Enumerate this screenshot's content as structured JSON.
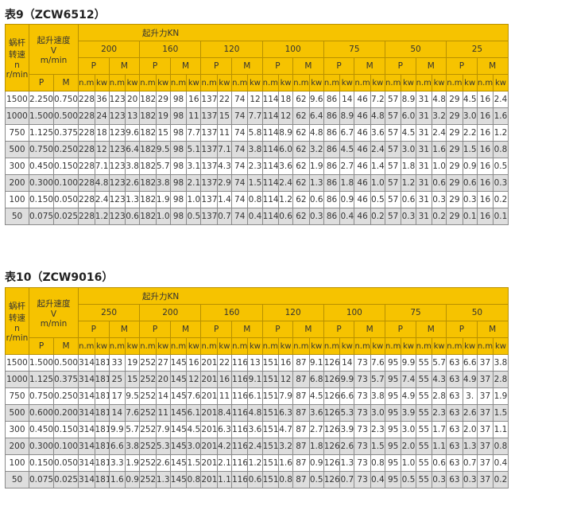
{
  "colors": {
    "header": "#f6c300",
    "row_alt": "#dedede"
  },
  "header_labels": {
    "worm_speed": [
      "蜗杆",
      "转速",
      "n",
      "r/min"
    ],
    "lift_speed": [
      "起升速度",
      "V",
      "m/min"
    ],
    "lift_force": "起升力KN",
    "p": "P",
    "m": "M",
    "nm": "n.m",
    "kw": "kw"
  },
  "tables": [
    {
      "title": "表9（ZCW6512）",
      "loads": [
        "200",
        "160",
        "120",
        "100",
        "75",
        "50",
        "25"
      ],
      "rows": [
        [
          "1500",
          "2.250",
          "0.750",
          "228",
          "36",
          "123",
          "20",
          "182",
          "29",
          "98",
          "16",
          "137",
          "22",
          "74",
          "12",
          "114",
          "18",
          "62",
          "9.6",
          "86",
          "14",
          "46",
          "7.2",
          "57",
          "8.9",
          "31",
          "4.8",
          "29",
          "4.5",
          "16",
          "2.4"
        ],
        [
          "1000",
          "1.500",
          "0.500",
          "228",
          "24",
          "123",
          "13",
          "182",
          "19",
          "98",
          "11",
          "137",
          "15",
          "74",
          "7.7",
          "114",
          "12",
          "62",
          "6.4",
          "86",
          "8.9",
          "46",
          "4.8",
          "57",
          "6.0",
          "31",
          "3.2",
          "29",
          "3.0",
          "16",
          "1.6"
        ],
        [
          "750",
          "1.125",
          "0.375",
          "228",
          "18",
          "123",
          "9.6",
          "182",
          "15",
          "98",
          "7.7",
          "137",
          "11",
          "74",
          "5.8",
          "114",
          "8.9",
          "62",
          "4.8",
          "86",
          "6.7",
          "46",
          "3.6",
          "57",
          "4.5",
          "31",
          "2.4",
          "29",
          "2.2",
          "16",
          "1.2"
        ],
        [
          "500",
          "0.750",
          "0.250",
          "228",
          "12",
          "123",
          "6.4",
          "182",
          "9.5",
          "98",
          "5.1",
          "137",
          "7.1",
          "74",
          "3.8",
          "114",
          "6.0",
          "62",
          "3.2",
          "86",
          "4.5",
          "46",
          "2.4",
          "57",
          "3.0",
          "31",
          "1.6",
          "29",
          "1.5",
          "16",
          "0.8"
        ],
        [
          "300",
          "0.450",
          "0.150",
          "228",
          "7.1",
          "123",
          "3.8",
          "182",
          "5.7",
          "98",
          "3.1",
          "137",
          "4.3",
          "74",
          "2.3",
          "114",
          "3.6",
          "62",
          "1.9",
          "86",
          "2.7",
          "46",
          "1.4",
          "57",
          "1.8",
          "31",
          "1.0",
          "29",
          "0.9",
          "16",
          "0.5"
        ],
        [
          "200",
          "0.300",
          "0.100",
          "228",
          "4.8",
          "123",
          "2.6",
          "182",
          "3.8",
          "98",
          "2.1",
          "137",
          "2.9",
          "74",
          "1.5",
          "114",
          "2.4",
          "62",
          "1.3",
          "86",
          "1.8",
          "46",
          "1.0",
          "57",
          "1.2",
          "31",
          "0.6",
          "29",
          "0.6",
          "16",
          "0.3"
        ],
        [
          "100",
          "0.150",
          "0.050",
          "228",
          "2.4",
          "123",
          "1.3",
          "182",
          "1.9",
          "98",
          "1.0",
          "137",
          "1.4",
          "74",
          "0.8",
          "114",
          "1.2",
          "62",
          "0.6",
          "86",
          "0.9",
          "46",
          "0.5",
          "57",
          "0.6",
          "31",
          "0.3",
          "29",
          "0.3",
          "16",
          "0.2"
        ],
        [
          "50",
          "0.075",
          "0.025",
          "228",
          "1.2",
          "123",
          "0.6",
          "182",
          "1.0",
          "98",
          "0.5",
          "137",
          "0.7",
          "74",
          "0.4",
          "114",
          "0.6",
          "62",
          "0.3",
          "86",
          "0.4",
          "46",
          "0.2",
          "57",
          "0.3",
          "31",
          "0.2",
          "29",
          "0.1",
          "16",
          "0.1"
        ]
      ]
    },
    {
      "title": "表10（ZCW9016）",
      "loads": [
        "250",
        "200",
        "160",
        "120",
        "100",
        "75",
        "50"
      ],
      "rows": [
        [
          "1500",
          "1.500",
          "0.500",
          "314",
          "181",
          "33",
          "19",
          "252",
          "27",
          "145",
          "16",
          "201",
          "22",
          "116",
          "13",
          "151",
          "16",
          "87",
          "9.1",
          "126",
          "14",
          "73",
          "7.6",
          "95",
          "9.9",
          "55",
          "5.7",
          "63",
          "6.6",
          "37",
          "3.8"
        ],
        [
          "1000",
          "1.125",
          "0.375",
          "314",
          "181",
          "25",
          "15",
          "252",
          "20",
          "145",
          "12",
          "201",
          "16",
          "116",
          "9.1",
          "151",
          "12",
          "87",
          "6.8",
          "126",
          "9.9",
          "73",
          "5.7",
          "95",
          "7.4",
          "55",
          "4.3",
          "63",
          "4.9",
          "37",
          "2.8"
        ],
        [
          "750",
          "0.750",
          "0.250",
          "314",
          "181",
          "17",
          "9.5",
          "252",
          "14",
          "145",
          "7.6",
          "201",
          "11",
          "116",
          "6.1",
          "151",
          "7.9",
          "87",
          "4.5",
          "126",
          "6.6",
          "73",
          "3.8",
          "95",
          "4.9",
          "55",
          "2.8",
          "63",
          "3.",
          "37",
          "1.9"
        ],
        [
          "500",
          "0.600",
          "0.200",
          "314",
          "181",
          "14",
          "7.6",
          "252",
          "11",
          "145",
          "6.1",
          "201",
          "8.4",
          "116",
          "4.8",
          "151",
          "6.3",
          "87",
          "3.6",
          "126",
          "5.3",
          "73",
          "3.0",
          "95",
          "3.9",
          "55",
          "2.3",
          "63",
          "2.6",
          "37",
          "1.5"
        ],
        [
          "300",
          "0.450",
          "0.150",
          "314",
          "181",
          "9.9",
          "5.7",
          "252",
          "7.9",
          "145",
          "4.5",
          "201",
          "6.3",
          "116",
          "3.6",
          "151",
          "4.7",
          "87",
          "2.7",
          "126",
          "3.9",
          "73",
          "2.3",
          "95",
          "3.0",
          "55",
          "1.7",
          "63",
          "2.0",
          "37",
          "1.1"
        ],
        [
          "200",
          "0.300",
          "0.100",
          "314",
          "181",
          "6.6",
          "3.8",
          "252",
          "5.3",
          "145",
          "3.0",
          "201",
          "4.2",
          "116",
          "2.4",
          "151",
          "3.2",
          "87",
          "1.8",
          "126",
          "2.6",
          "73",
          "1.5",
          "95",
          "2.0",
          "55",
          "1.1",
          "63",
          "1.3",
          "37",
          "0.8"
        ],
        [
          "100",
          "0.150",
          "0.050",
          "314",
          "181",
          "3.3",
          "1.9",
          "252",
          "2.6",
          "145",
          "1.5",
          "201",
          "2.1",
          "116",
          "1.2",
          "151",
          "1.6",
          "87",
          "0.9",
          "126",
          "1.3",
          "73",
          "0.8",
          "95",
          "1.0",
          "55",
          "0.6",
          "63",
          "0.7",
          "37",
          "0.4"
        ],
        [
          "50",
          "0.075",
          "0.025",
          "314",
          "181",
          "1.6",
          "0.9",
          "252",
          "1.3",
          "145",
          "0.8",
          "201",
          "1.1",
          "116",
          "0.6",
          "151",
          "0.8",
          "87",
          "0.5",
          "126",
          "0.7",
          "73",
          "0.4",
          "95",
          "0.5",
          "55",
          "0.3",
          "63",
          "0.3",
          "37",
          "0.2"
        ]
      ]
    }
  ]
}
